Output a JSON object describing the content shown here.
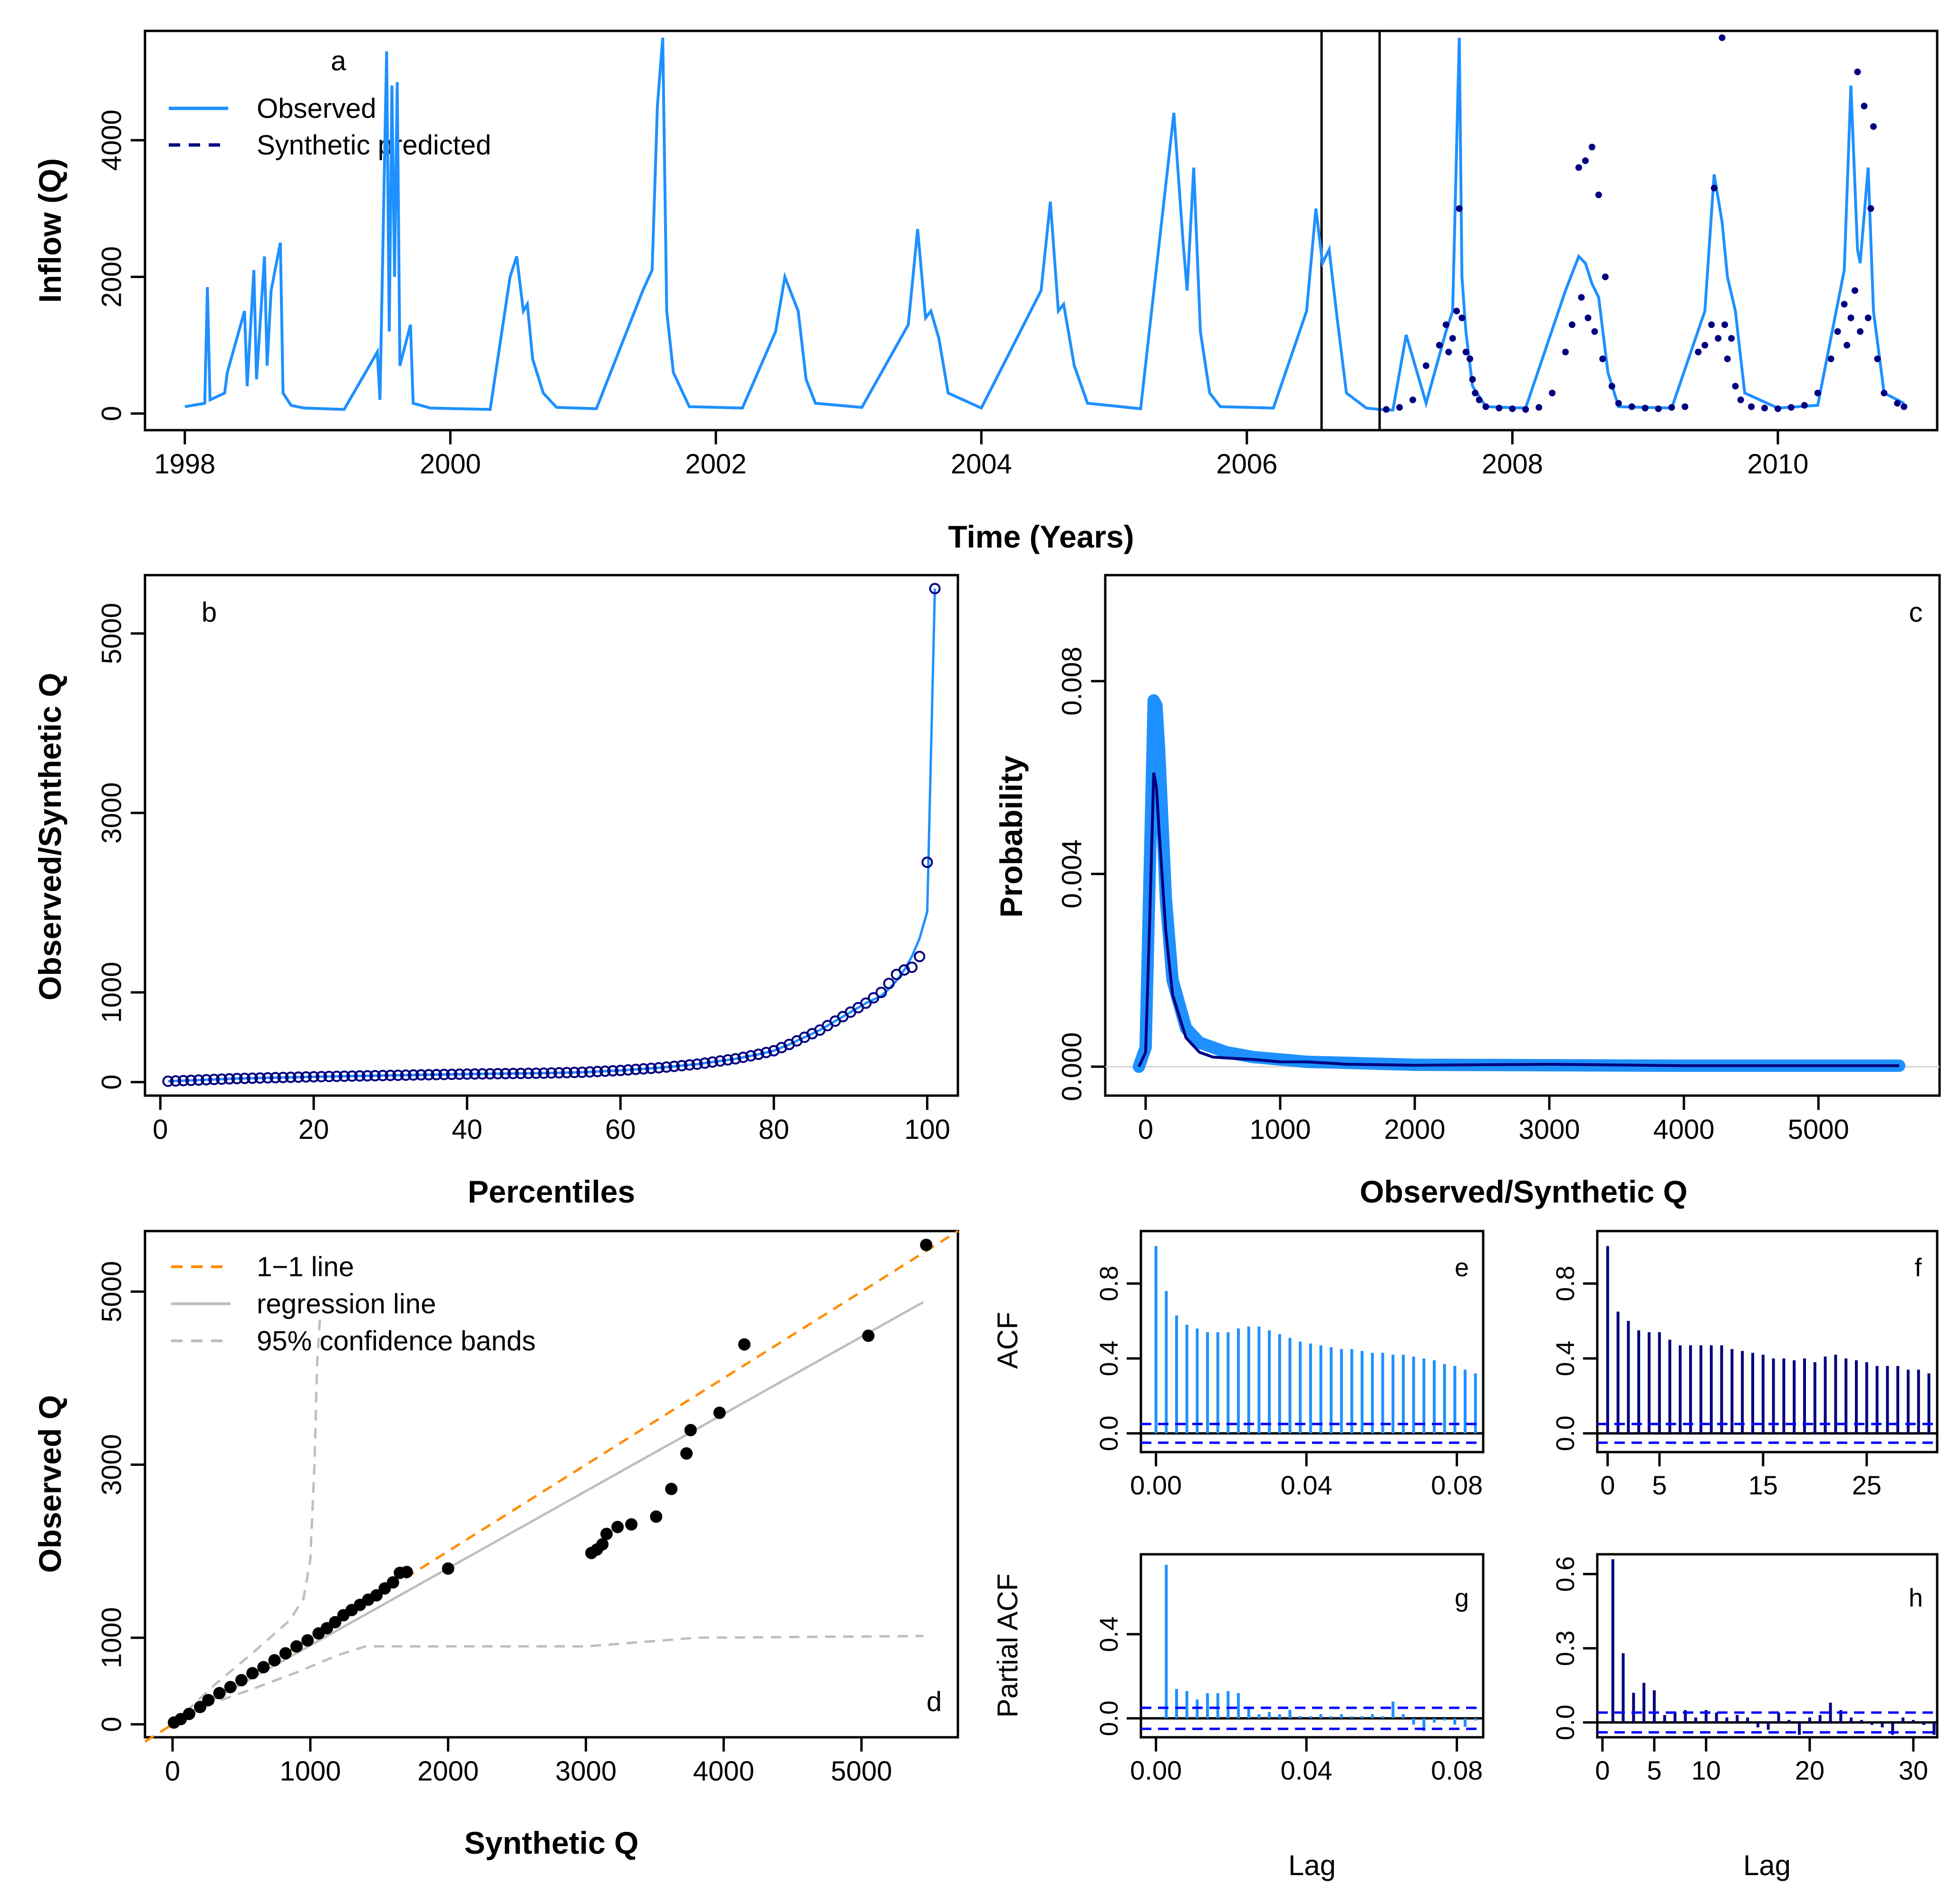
{
  "colors": {
    "observed": "#1E90FF",
    "synthetic": "#000080",
    "one_to_one": "#FF8C00",
    "regression": "#BEBEBE",
    "confidence": "#BEBEBE",
    "ci": "#0000FF",
    "points": "#000000"
  },
  "chart_data": [
    {
      "id": "a",
      "type": "line",
      "panel_label": "a",
      "ylabel": "Inflow (Q)",
      "xlabel": "Time (Years)",
      "ylim": [
        0,
        5600
      ],
      "xlim": [
        1997.7,
        2011.2
      ],
      "split_at": 2007.0,
      "yticks": [
        0,
        2000,
        4000
      ],
      "xticks": [
        1998,
        2000,
        2002,
        2004,
        2006,
        2008,
        2010
      ],
      "legend": [
        "Observed",
        "Synthetic predicted"
      ],
      "series": [
        {
          "name": "Observed",
          "x": [
            1998.0,
            1998.15,
            1998.17,
            1998.19,
            1998.3,
            1998.32,
            1998.45,
            1998.47,
            1998.52,
            1998.54,
            1998.6,
            1998.62,
            1998.65,
            1998.72,
            1998.74,
            1998.8,
            1998.9,
            1999.2,
            1999.45,
            1999.47,
            1999.52,
            1999.54,
            1999.56,
            1999.58,
            1999.6,
            1999.62,
            1999.7,
            1999.72,
            1999.85,
            2000.3,
            2000.45,
            2000.5,
            2000.55,
            2000.58,
            2000.62,
            2000.7,
            2000.8,
            2001.1,
            2001.45,
            2001.52,
            2001.56,
            2001.6,
            2001.63,
            2001.68,
            2001.8,
            2002.2,
            2002.45,
            2002.52,
            2002.58,
            2002.62,
            2002.68,
            2002.75,
            2003.1,
            2003.45,
            2003.52,
            2003.58,
            2003.62,
            2003.68,
            2003.75,
            2004.0,
            2004.45,
            2004.52,
            2004.58,
            2004.62,
            2004.7,
            2004.8,
            2005.2,
            2005.45,
            2005.52,
            2005.55,
            2005.6,
            2005.65,
            2005.72,
            2005.8,
            2006.2,
            2006.45,
            2006.52,
            2006.57,
            2006.62,
            2006.68,
            2006.75,
            2006.9,
            2007.0,
            2007.1,
            2007.2,
            2007.35,
            2007.5,
            2007.55,
            2007.6,
            2007.62,
            2007.65,
            2007.7,
            2007.8,
            2008.1,
            2008.4,
            2008.5,
            2008.55,
            2008.6,
            2008.65,
            2008.72,
            2008.8,
            2009.2,
            2009.45,
            2009.52,
            2009.58,
            2009.62,
            2009.68,
            2009.75,
            2010.0,
            2010.3,
            2010.5,
            2010.55,
            2010.6,
            2010.62,
            2010.68,
            2010.72,
            2010.8,
            2010.95
          ],
          "y": [
            100,
            150,
            1850,
            200,
            300,
            600,
            1500,
            400,
            2100,
            500,
            2300,
            700,
            1800,
            2500,
            300,
            120,
            80,
            60,
            900,
            200,
            5300,
            1200,
            4800,
            2000,
            4850,
            700,
            1300,
            150,
            80,
            60,
            2000,
            2300,
            1500,
            1600,
            800,
            300,
            90,
            70,
            1800,
            2100,
            4500,
            5500,
            1500,
            600,
            100,
            80,
            1200,
            2000,
            1700,
            1500,
            500,
            150,
            90,
            1300,
            2700,
            1400,
            1500,
            1100,
            300,
            80,
            1800,
            3100,
            1500,
            1600,
            700,
            150,
            70,
            4400,
            2500,
            1800,
            3600,
            1200,
            300,
            100,
            80,
            1500,
            3000,
            2200,
            2400,
            1400,
            300,
            80,
            60,
            50,
            1150,
            150,
            1200,
            1500,
            5500,
            2000,
            1200,
            400,
            100,
            80,
            1800,
            2300,
            2200,
            1900,
            1700,
            600,
            100,
            80,
            1500,
            3500,
            2800,
            2000,
            1500,
            300,
            80,
            120,
            2100,
            4800,
            2400,
            2200,
            3600,
            1500,
            300,
            150
          ]
        },
        {
          "name": "Synthetic predicted",
          "x": [
            2007.05,
            2007.15,
            2007.25,
            2007.35,
            2007.45,
            2007.5,
            2007.52,
            2007.55,
            2007.58,
            2007.6,
            2007.62,
            2007.65,
            2007.68,
            2007.7,
            2007.72,
            2007.75,
            2007.8,
            2007.9,
            2008.0,
            2008.1,
            2008.2,
            2008.3,
            2008.4,
            2008.45,
            2008.5,
            2008.52,
            2008.55,
            2008.57,
            2008.6,
            2008.62,
            2008.65,
            2008.68,
            2008.7,
            2008.75,
            2008.8,
            2008.9,
            2009.0,
            2009.1,
            2009.2,
            2009.3,
            2009.4,
            2009.45,
            2009.5,
            2009.52,
            2009.55,
            2009.58,
            2009.6,
            2009.62,
            2009.65,
            2009.68,
            2009.72,
            2009.8,
            2009.9,
            2010.0,
            2010.1,
            2010.2,
            2010.3,
            2010.4,
            2010.45,
            2010.5,
            2010.52,
            2010.55,
            2010.58,
            2010.6,
            2010.62,
            2010.65,
            2010.68,
            2010.7,
            2010.72,
            2010.75,
            2010.8,
            2010.9,
            2010.95
          ],
          "y": [
            60,
            90,
            200,
            700,
            1000,
            1300,
            900,
            1100,
            1500,
            3000,
            1400,
            900,
            800,
            500,
            300,
            200,
            100,
            80,
            70,
            60,
            90,
            300,
            900,
            1300,
            3600,
            1700,
            3700,
            1400,
            3900,
            1200,
            3200,
            800,
            2000,
            400,
            150,
            100,
            80,
            70,
            90,
            100,
            900,
            1000,
            1300,
            3300,
            1100,
            5500,
            1300,
            800,
            1100,
            400,
            200,
            100,
            80,
            70,
            90,
            120,
            300,
            800,
            1200,
            1600,
            1000,
            1400,
            1800,
            5000,
            1200,
            4500,
            1400,
            3000,
            4200,
            800,
            300,
            150,
            100
          ]
        }
      ]
    },
    {
      "id": "b",
      "type": "line",
      "panel_label": "b",
      "ylabel": "Observed/Synthetic Q",
      "xlabel": "Percentiles",
      "xlim": [
        -2,
        104
      ],
      "ylim": [
        -150,
        5650
      ],
      "xticks": [
        0,
        20,
        40,
        60,
        80,
        100
      ],
      "yticks": [
        0,
        1000,
        3000,
        5000
      ],
      "series": [
        {
          "name": "Observed",
          "x": [
            1,
            10,
            20,
            30,
            40,
            50,
            55,
            60,
            65,
            70,
            75,
            78,
            80,
            82,
            84,
            86,
            88,
            90,
            92,
            94,
            95,
            96,
            97,
            98,
            99,
            100,
            101
          ],
          "y": [
            10,
            40,
            60,
            75,
            90,
            100,
            110,
            130,
            160,
            200,
            260,
            310,
            350,
            420,
            500,
            580,
            680,
            780,
            880,
            960,
            1040,
            1130,
            1250,
            1400,
            1600,
            1900,
            5500
          ]
        },
        {
          "name": "Synthetic",
          "x": [
            1,
            10,
            20,
            30,
            40,
            50,
            55,
            60,
            65,
            70,
            75,
            78,
            80,
            82,
            84,
            86,
            88,
            90,
            92,
            94,
            95,
            96,
            97,
            98,
            99,
            100,
            101
          ],
          "y": [
            10,
            40,
            60,
            75,
            90,
            100,
            110,
            130,
            160,
            200,
            260,
            310,
            350,
            420,
            500,
            580,
            680,
            780,
            880,
            1000,
            1100,
            1200,
            1250,
            1280,
            1400,
            2450,
            5500
          ]
        }
      ]
    },
    {
      "id": "c",
      "type": "line",
      "panel_label": "c",
      "ylabel": "Probability",
      "xlabel": "Observed/Synthetic Q",
      "xlim": [
        -300,
        5900
      ],
      "ylim": [
        -0.0006,
        0.0102
      ],
      "xticks": [
        0,
        1000,
        2000,
        3000,
        4000,
        5000
      ],
      "yticks": [
        "0.000",
        "0.004",
        "0.008"
      ],
      "series": [
        {
          "name": "Observed",
          "x": [
            -50,
            0,
            30,
            60,
            80,
            100,
            150,
            200,
            300,
            400,
            500,
            600,
            800,
            1000,
            1200,
            1500,
            2000,
            3000,
            4000,
            5000,
            5600
          ],
          "y": [
            0.0,
            0.0004,
            0.004,
            0.0076,
            0.0075,
            0.0066,
            0.0035,
            0.0018,
            0.0008,
            0.0005,
            0.0004,
            0.0003,
            0.0002,
            0.00015,
            0.0001,
            8e-05,
            4e-05,
            3e-05,
            2e-05,
            2e-05,
            2e-05
          ]
        },
        {
          "name": "Synthetic",
          "x": [
            -50,
            0,
            30,
            60,
            80,
            100,
            150,
            200,
            300,
            400,
            500,
            600,
            800,
            1000,
            1200,
            1500,
            2000,
            3000,
            4000,
            5000,
            5600
          ],
          "y": [
            0.0,
            0.0003,
            0.003,
            0.0061,
            0.0058,
            0.0049,
            0.0028,
            0.0015,
            0.0006,
            0.0003,
            0.0002,
            0.00018,
            0.00015,
            0.0001,
            0.0001,
            5e-05,
            3e-05,
            5e-05,
            2e-05,
            2e-05,
            2e-05
          ]
        }
      ]
    },
    {
      "id": "d",
      "type": "scatter",
      "panel_label": "d",
      "ylabel": "Observed Q",
      "xlabel": "Synthetic Q",
      "xlim": [
        -200,
        5700
      ],
      "ylim": [
        -150,
        5700
      ],
      "xticks": [
        0,
        1000,
        2000,
        3000,
        4000,
        5000
      ],
      "yticks": [
        0,
        1000,
        3000,
        5000
      ],
      "legend": [
        "1−1 line",
        "regression line",
        "95% confidence bands"
      ],
      "points": {
        "x": [
          10,
          60,
          120,
          200,
          260,
          340,
          420,
          500,
          580,
          660,
          740,
          820,
          900,
          980,
          1060,
          1120,
          1180,
          1240,
          1300,
          1360,
          1420,
          1480,
          1540,
          1600,
          1650,
          1700,
          2000,
          3040,
          3080,
          3120,
          3150,
          3230,
          3330,
          3510,
          3620,
          3730,
          3760,
          3970,
          4150,
          5050,
          5470
        ],
        "y": [
          20,
          60,
          120,
          200,
          280,
          360,
          430,
          510,
          590,
          660,
          740,
          820,
          900,
          970,
          1050,
          1110,
          1180,
          1260,
          1320,
          1380,
          1440,
          1490,
          1570,
          1640,
          1750,
          1760,
          1800,
          1980,
          2020,
          2080,
          2200,
          2280,
          2310,
          2400,
          2720,
          3130,
          3400,
          3600,
          4390,
          4490,
          5540
        ]
      },
      "regression_line": {
        "x": [
          0,
          5450
        ],
        "y": [
          20,
          4880
        ]
      },
      "one_to_one_line": {
        "x": [
          -200,
          5700
        ],
        "y": [
          -200,
          5700
        ]
      },
      "confidence_upper": {
        "x": [
          0,
          300,
          600,
          850,
          950,
          1000,
          1030,
          1050,
          1070,
          1100
        ],
        "y": [
          0,
          450,
          850,
          1200,
          1450,
          1900,
          3000,
          4200,
          4700,
          4700
        ]
      },
      "confidence_lower": {
        "x": [
          0,
          300,
          600,
          900,
          1200,
          1400,
          2000,
          3000,
          3800,
          5450
        ],
        "y": [
          0,
          250,
          420,
          600,
          800,
          900,
          900,
          900,
          1000,
          1020
        ]
      }
    },
    {
      "id": "e",
      "type": "bar",
      "panel_label": "e",
      "ylabel": "ACF",
      "xlim": [
        -0.004,
        0.087
      ],
      "ylim": [
        -0.1,
        1.08
      ],
      "xticks": [
        "0.00",
        "0.04",
        "0.08"
      ],
      "yticks": [
        "0.0",
        "0.4",
        "0.8"
      ],
      "ci": 0.05,
      "lag_step": 0.00274,
      "values": [
        1.0,
        0.76,
        0.63,
        0.58,
        0.56,
        0.54,
        0.54,
        0.54,
        0.56,
        0.57,
        0.57,
        0.55,
        0.53,
        0.51,
        0.49,
        0.48,
        0.47,
        0.46,
        0.45,
        0.45,
        0.44,
        0.43,
        0.43,
        0.42,
        0.42,
        0.41,
        0.4,
        0.39,
        0.37,
        0.36,
        0.34,
        0.32
      ]
    },
    {
      "id": "f",
      "type": "bar",
      "panel_label": "f",
      "xlim": [
        -1,
        31.8
      ],
      "ylim": [
        -0.1,
        1.08
      ],
      "xticks": [
        0,
        5,
        15,
        25
      ],
      "yticks": [
        "0.0",
        "0.4",
        "0.8"
      ],
      "ci": 0.05,
      "values": [
        1.0,
        0.65,
        0.6,
        0.55,
        0.54,
        0.54,
        0.5,
        0.47,
        0.47,
        0.47,
        0.47,
        0.47,
        0.45,
        0.44,
        0.43,
        0.42,
        0.4,
        0.4,
        0.39,
        0.4,
        0.38,
        0.41,
        0.42,
        0.4,
        0.39,
        0.38,
        0.36,
        0.36,
        0.36,
        0.34,
        0.34,
        0.32
      ]
    },
    {
      "id": "g",
      "type": "bar",
      "panel_label": "g",
      "ylabel": "Partial ACF",
      "xlabel": "Lag",
      "xlim": [
        -0.004,
        0.087
      ],
      "ylim": [
        -0.09,
        0.78
      ],
      "xticks": [
        "0.00",
        "0.04",
        "0.08"
      ],
      "yticks": [
        "0.0",
        "0.4"
      ],
      "ci": 0.05,
      "lag_step": 0.00274,
      "values": [
        0.73,
        0.14,
        0.13,
        0.09,
        0.12,
        0.12,
        0.13,
        0.12,
        0.05,
        0.02,
        0.03,
        0.02,
        0.04,
        0.01,
        0.01,
        0.02,
        0.01,
        0.02,
        0.01,
        0.01,
        0.02,
        0.01,
        0.08,
        0.02,
        -0.03,
        -0.06,
        -0.02,
        -0.01,
        -0.03,
        -0.04,
        -0.01
      ]
    },
    {
      "id": "h",
      "type": "bar",
      "panel_label": "h",
      "xlabel": "Lag",
      "xlim": [
        -0.5,
        32.3
      ],
      "ylim": [
        -0.06,
        0.68
      ],
      "xticks": [
        0,
        5,
        10,
        20,
        30
      ],
      "yticks": [
        "0.0",
        "0.3",
        "0.6"
      ],
      "ci": 0.04,
      "values": [
        0.66,
        0.28,
        0.12,
        0.16,
        0.13,
        0.03,
        0.04,
        0.05,
        0.02,
        0.05,
        0.04,
        0.02,
        0.03,
        0.02,
        -0.02,
        -0.03,
        0.04,
        0.01,
        -0.05,
        0.02,
        0.03,
        0.08,
        0.05,
        0.02,
        0.01,
        -0.01,
        -0.02,
        -0.05,
        0.02,
        0.01,
        -0.01,
        -0.05
      ]
    }
  ]
}
